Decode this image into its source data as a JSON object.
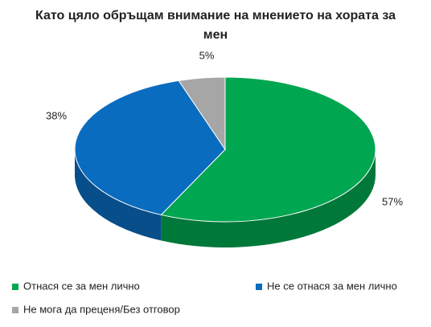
{
  "chart_data": {
    "type": "pie",
    "title": "Като цяло обръщам внимание на мнението на хората за мен",
    "categories": [
      "Отнася се за мен лично",
      "Не се отнася за мен лично",
      "Не мога да преценя/Без отговор"
    ],
    "values": [
      57,
      38,
      5
    ],
    "value_labels": [
      "57%",
      "38%",
      "5%"
    ],
    "colors": [
      "#00a650",
      "#0a6cbf",
      "#a6a6a6"
    ],
    "legend": "bottom"
  }
}
